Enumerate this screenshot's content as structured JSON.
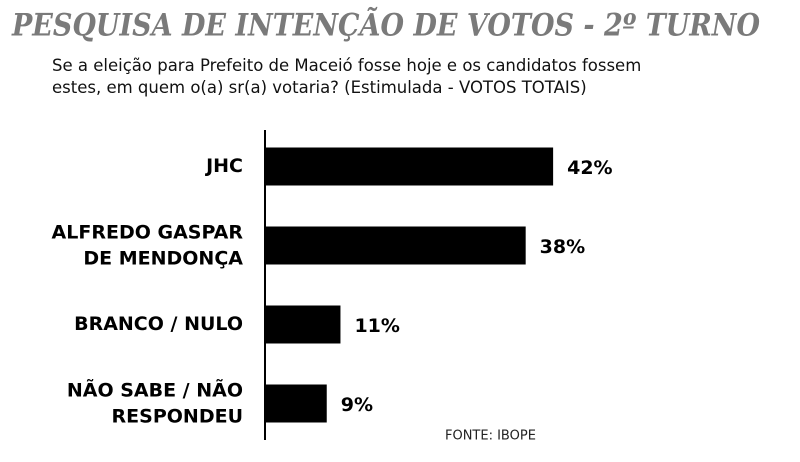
{
  "chart_data": {
    "type": "bar",
    "orientation": "horizontal",
    "title": "PESQUISA DE INTENÇÃO DE VOTOS - 2º TURNO",
    "subtitle": "Se a eleição para Prefeito de Maceió fosse hoje e os candidatos fossem estes, em quem o(a) sr(a) votaria? (Estimulada - VOTOS TOTAIS)",
    "categories": [
      "JHC",
      "ALFREDO GASPAR DE MENDONÇA",
      "BRANCO / NULO",
      "NÃO SABE / NÃO RESPONDEU"
    ],
    "values": [
      42,
      38,
      11,
      9
    ],
    "value_labels": [
      "42%",
      "38%",
      "11%",
      "9%"
    ],
    "color": "#000000",
    "source": "FONTE: IBOPE"
  }
}
